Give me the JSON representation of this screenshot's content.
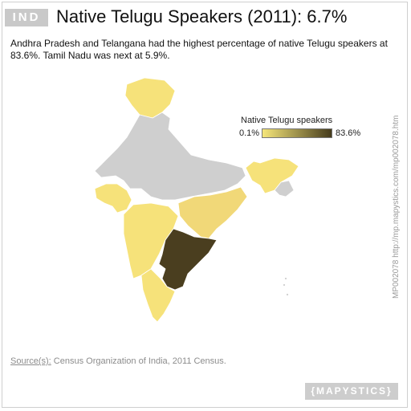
{
  "header": {
    "badge": "IND",
    "title": "Native Telugu Speakers (2011): 6.7%",
    "subtitle": "Andhra Pradesh and Telangana had the highest percentage of native Telugu speakers at 83.6%. Tamil Nadu was next at 5.9%."
  },
  "legend": {
    "title": "Native Telugu speakers",
    "min_label": "0.1%",
    "max_label": "83.6%",
    "color_low": "#f5e67a",
    "color_high": "#453b1c"
  },
  "colors": {
    "no_data": "#cfcfcf",
    "light": "#f6e27a",
    "mid": "#f1d878",
    "highlight": "#4a3e1f",
    "border": "#ffffff"
  },
  "footer": {
    "source_label": "Source(s):",
    "source_text": " Census Organization of India, 2011 Census.",
    "map_id": "MP002078 http://mp.mapystics.com/mp002078.htm",
    "brand": "{MAPYSTICS}"
  }
}
